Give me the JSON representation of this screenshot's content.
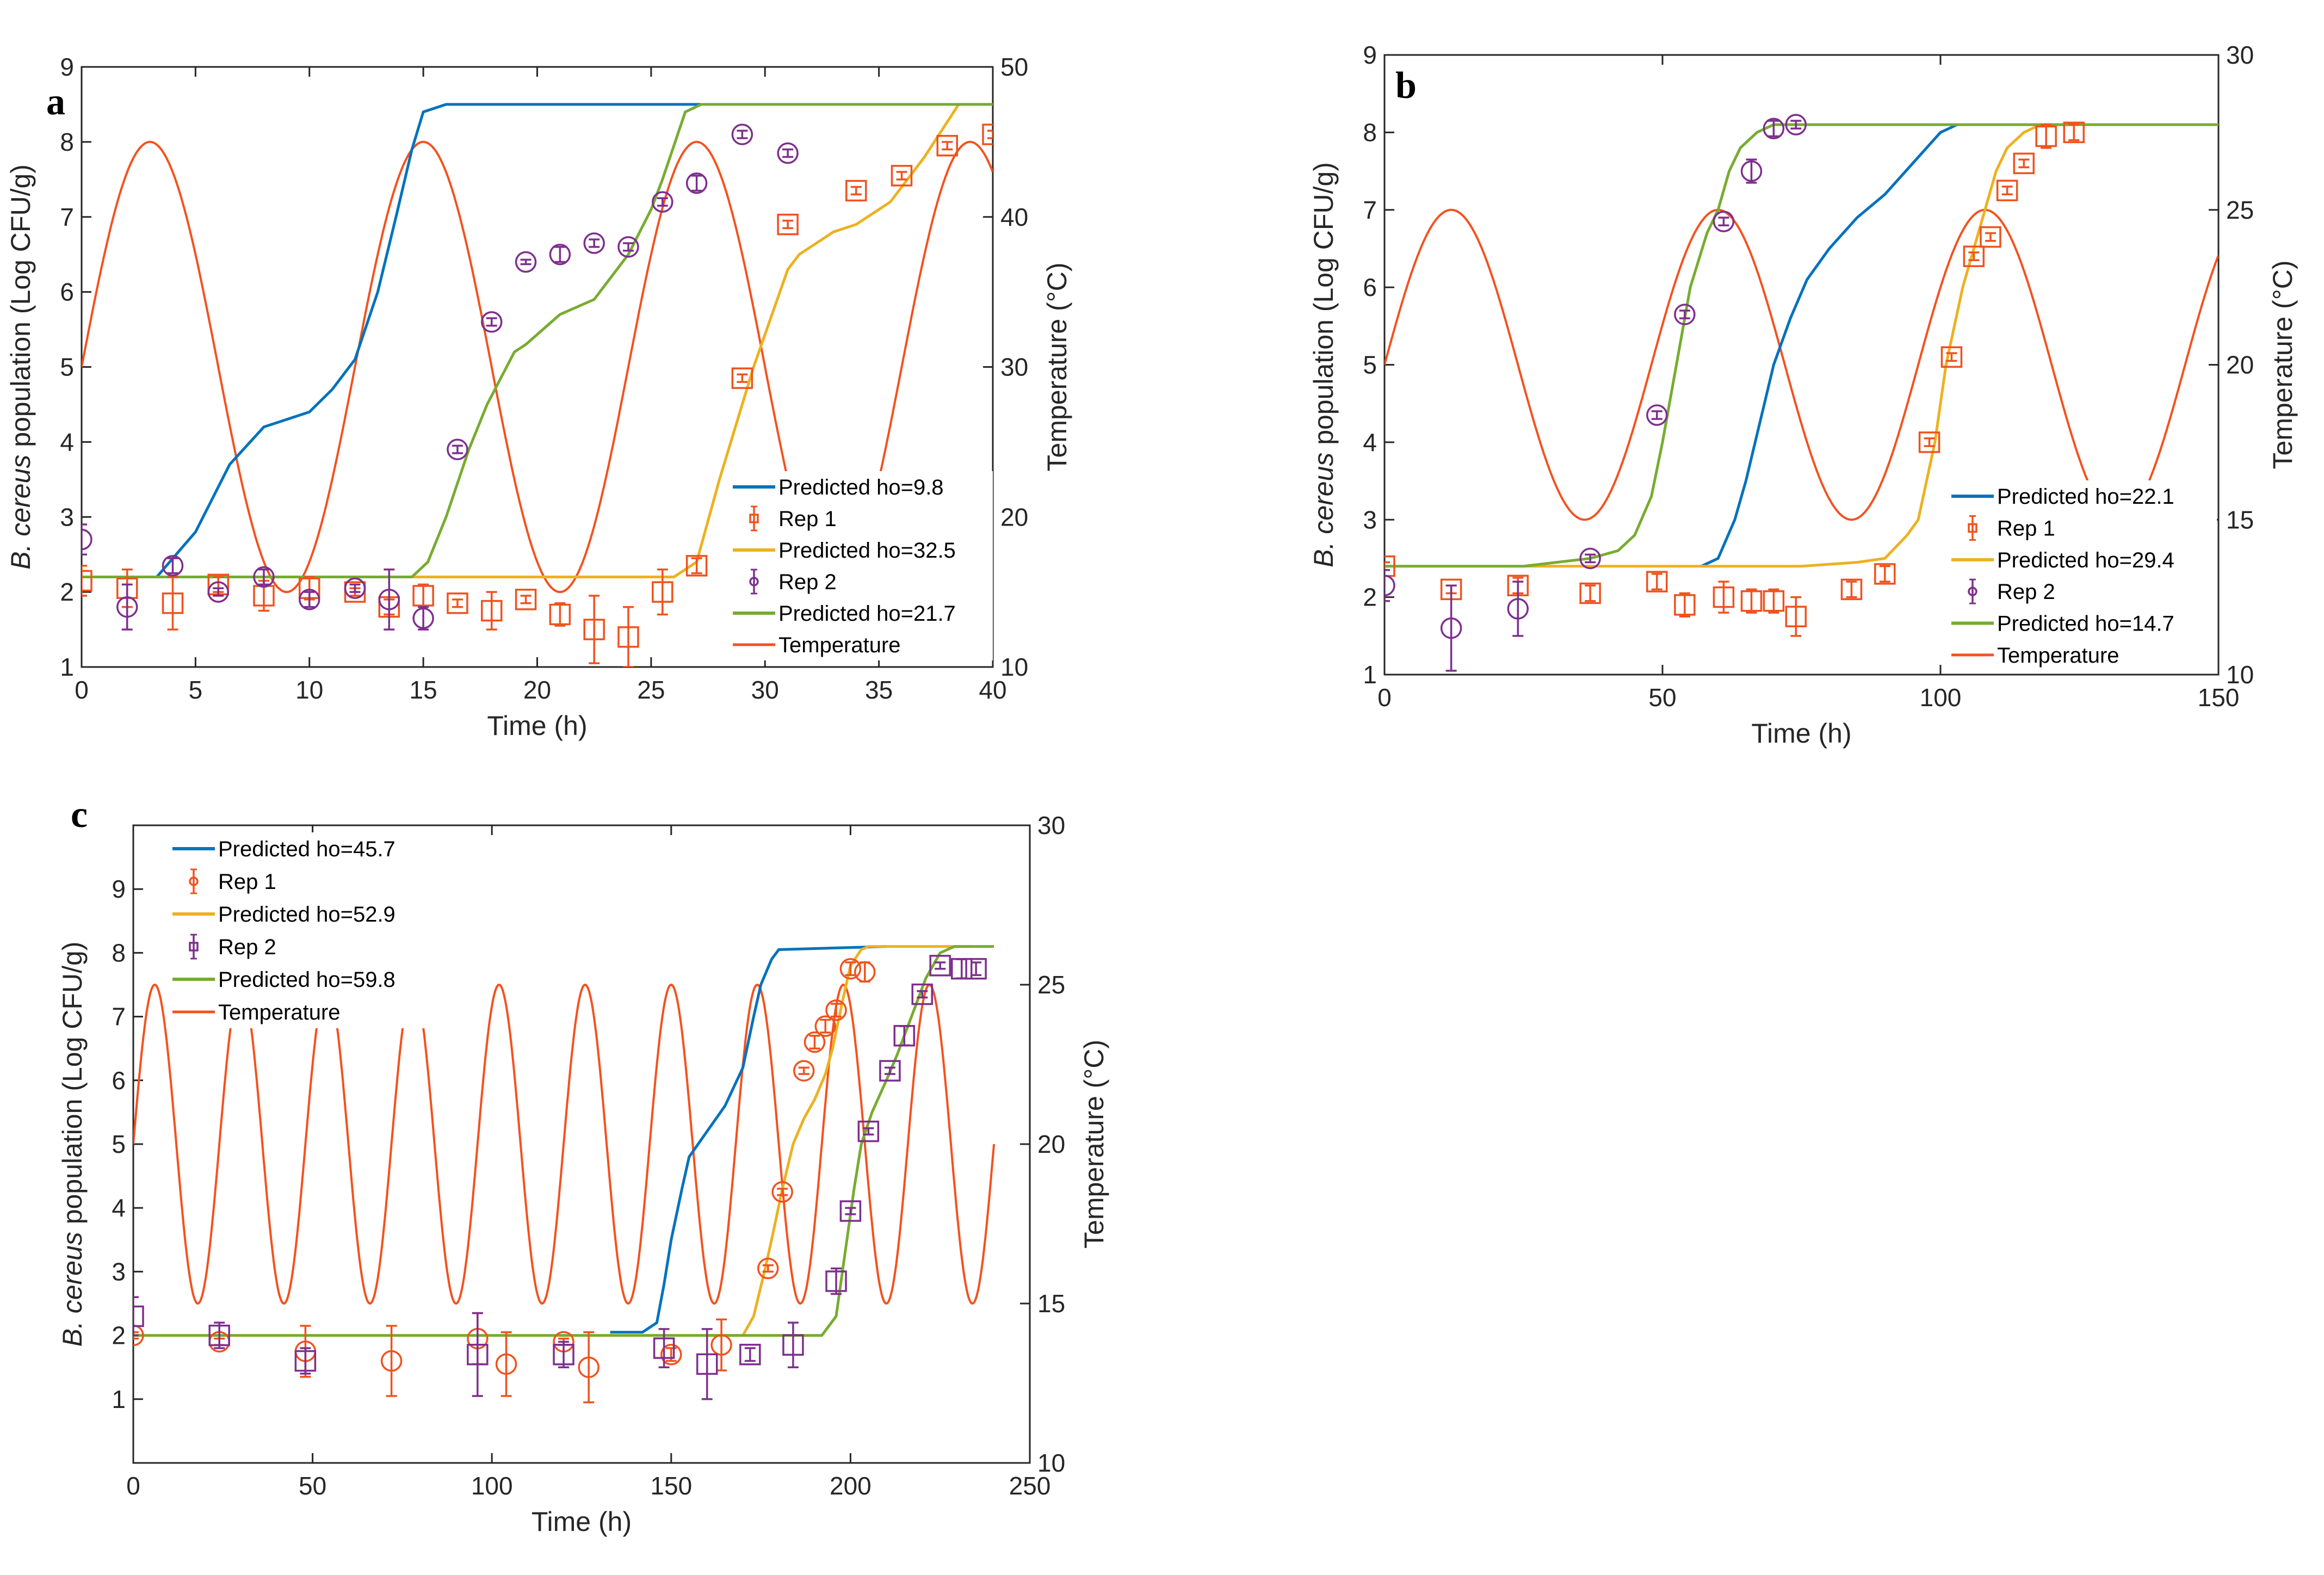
{
  "colors": {
    "blue": "#0072BD",
    "yellow": "#EDB120",
    "green": "#77AC30",
    "temp": "#F4511E",
    "rep1": "#F0521E",
    "rep2": "#7E2F8E",
    "axis": "#262626"
  },
  "chart_data": [
    {
      "type": "line",
      "panel_label": "a",
      "xlabel": "Time (h)",
      "ylabel_italic": "B. cereus",
      "ylabel_rest": " population (Log CFU/g)",
      "y2label": "Temperature (°C)",
      "xlim": [
        0,
        40
      ],
      "ylim": [
        1,
        9
      ],
      "y2lim": [
        10,
        50
      ],
      "xticks": [
        0,
        5,
        10,
        15,
        20,
        25,
        30,
        35,
        40
      ],
      "yticks": [
        1,
        2,
        3,
        4,
        5,
        6,
        7,
        8,
        9
      ],
      "y2ticks": [
        10,
        20,
        30,
        40,
        50
      ],
      "legend_placement": "bottom-right",
      "temperature": {
        "label": "Temperature",
        "mean": 30,
        "amplitude": 15,
        "period_h": 12,
        "t_range": [
          0,
          40
        ]
      },
      "predicted": [
        {
          "label": "Predicted ho=9.8",
          "color": "blue",
          "x": [
            3.3,
            5,
            6.5,
            8,
            10,
            11,
            12,
            13,
            13.8,
            14.5,
            15,
            16,
            27.2
          ],
          "y": [
            2.2,
            2.8,
            3.7,
            4.2,
            4.4,
            4.7,
            5.1,
            6.0,
            7.0,
            7.9,
            8.4,
            8.5,
            8.5
          ]
        },
        {
          "label": "Predicted ho=32.5",
          "color": "yellow",
          "x": [
            14.5,
            26,
            27,
            28,
            29.5,
            31,
            31.5,
            33,
            34,
            35.5,
            37,
            38.5,
            40
          ],
          "y": [
            2.2,
            2.2,
            2.4,
            3.5,
            5.0,
            6.3,
            6.5,
            6.8,
            6.9,
            7.2,
            7.8,
            8.5,
            8.5
          ]
        },
        {
          "label": "Predicted ho=21.7",
          "color": "green",
          "x": [
            0,
            14.5,
            15.2,
            16,
            17,
            17.8,
            19,
            19.5,
            21,
            22.5,
            24,
            25,
            25.5,
            26.5,
            27.2,
            40
          ],
          "y": [
            2.2,
            2.2,
            2.4,
            3.0,
            3.9,
            4.5,
            5.2,
            5.3,
            5.7,
            5.9,
            6.5,
            7.1,
            7.5,
            8.4,
            8.5,
            8.5
          ]
        }
      ],
      "reps": [
        {
          "label": "Rep 1",
          "marker": "square",
          "color": "rep1",
          "legend_marker": "square",
          "x": [
            0,
            2,
            4,
            6,
            8,
            10,
            12,
            13.5,
            15,
            16.5,
            18,
            19.5,
            21,
            22.5,
            24,
            25.5,
            27,
            29,
            31,
            34,
            36,
            38,
            40
          ],
          "y": [
            2.15,
            2.05,
            1.85,
            2.1,
            1.95,
            2.05,
            2.0,
            1.8,
            1.95,
            1.85,
            1.75,
            1.9,
            1.7,
            1.5,
            1.4,
            2.0,
            2.35,
            4.85,
            6.9,
            7.35,
            7.55,
            7.95,
            8.1
          ],
          "err": [
            0.2,
            0.25,
            0.35,
            0.1,
            0.2,
            0.15,
            0.05,
            0.1,
            0.15,
            0.05,
            0.25,
            0.05,
            0.15,
            0.45,
            0.4,
            0.3,
            0.1,
            0.05,
            0.05,
            0.05,
            0.05,
            0.05,
            0.05
          ]
        },
        {
          "label": "Rep 2",
          "marker": "circle",
          "color": "rep2",
          "legend_marker": "circle",
          "x": [
            0,
            2,
            4,
            6,
            8,
            10,
            12,
            13.5,
            15,
            16.5,
            18,
            19.5,
            21,
            22.5,
            24,
            25.5,
            27,
            29,
            31
          ],
          "y": [
            2.7,
            1.8,
            2.35,
            2.0,
            2.2,
            1.9,
            2.05,
            1.9,
            1.65,
            3.9,
            5.6,
            6.4,
            6.5,
            6.65,
            6.6,
            7.2,
            7.45,
            8.1,
            7.85
          ],
          "err": [
            0.2,
            0.3,
            0.1,
            0.05,
            0.1,
            0.1,
            0.05,
            0.4,
            0.15,
            0.05,
            0.05,
            0.03,
            0.1,
            0.05,
            0.05,
            0.05,
            0.1,
            0.05,
            0.05
          ]
        }
      ],
      "legend_order": [
        "p0",
        "r0",
        "p1",
        "r1",
        "p2",
        "temp"
      ]
    },
    {
      "type": "line",
      "panel_label": "b",
      "xlabel": "Time (h)",
      "ylabel_italic": "B. cereus",
      "ylabel_rest": " population (Log CFU/g)",
      "y2label": "Temperature (°C)",
      "xlim": [
        0,
        150
      ],
      "ylim": [
        1,
        9
      ],
      "y2lim": [
        10,
        30
      ],
      "xticks": [
        0,
        50,
        100,
        150
      ],
      "yticks": [
        1,
        2,
        3,
        4,
        5,
        6,
        7,
        8,
        9
      ],
      "y2ticks": [
        10,
        15,
        20,
        25,
        30
      ],
      "legend_placement": "bottom-right",
      "temperature": {
        "label": "Temperature",
        "mean": 20,
        "amplitude": 5,
        "period_h": 48,
        "t_range": [
          0,
          150
        ]
      },
      "predicted": [
        {
          "label": "Predicted ho=22.1",
          "color": "blue",
          "x": [
            57,
            60,
            63,
            65,
            68,
            70,
            73,
            76,
            80,
            85,
            90,
            95,
            100,
            103
          ],
          "y": [
            2.4,
            2.5,
            3.0,
            3.5,
            4.4,
            5.0,
            5.6,
            6.1,
            6.5,
            6.9,
            7.2,
            7.6,
            8.0,
            8.1
          ]
        },
        {
          "label": "Predicted ho=29.4",
          "color": "yellow",
          "x": [
            25,
            75,
            85,
            90,
            94,
            96,
            99,
            101,
            104,
            108,
            110,
            112,
            115,
            118,
            124
          ],
          "y": [
            2.4,
            2.4,
            2.45,
            2.5,
            2.8,
            3.0,
            4.0,
            5.0,
            6.0,
            7.0,
            7.5,
            7.8,
            8.0,
            8.1,
            8.1
          ]
        },
        {
          "label": "Predicted ho=14.7",
          "color": "green",
          "x": [
            0,
            25,
            37,
            42,
            45,
            48,
            50,
            53,
            55,
            58,
            60,
            62,
            64,
            67,
            70,
            150
          ],
          "y": [
            2.4,
            2.4,
            2.5,
            2.6,
            2.8,
            3.3,
            4.0,
            5.2,
            6.0,
            6.7,
            7.0,
            7.5,
            7.8,
            8.0,
            8.1,
            8.1
          ]
        }
      ],
      "reps": [
        {
          "label": "Rep 1",
          "marker": "square",
          "color": "rep1",
          "legend_marker": "square",
          "x": [
            0,
            12,
            24,
            37,
            49,
            54,
            61,
            66,
            70,
            74,
            84,
            90,
            98,
            102,
            106,
            109,
            112,
            115,
            119,
            124
          ],
          "y": [
            2.4,
            2.1,
            2.15,
            2.05,
            2.2,
            1.9,
            2.0,
            1.95,
            1.95,
            1.75,
            2.1,
            2.3,
            4.0,
            5.1,
            6.4,
            6.65,
            7.25,
            7.6,
            7.95,
            8.0
          ],
          "err": [
            0.05,
            0.05,
            0.1,
            0.1,
            0.1,
            0.15,
            0.2,
            0.15,
            0.15,
            0.25,
            0.1,
            0.1,
            0.05,
            0.05,
            0.05,
            0.05,
            0.05,
            0.05,
            0.15,
            0.1
          ]
        },
        {
          "label": "Rep 2",
          "marker": "circle",
          "color": "rep2",
          "legend_marker": "circle",
          "x": [
            0,
            12,
            24,
            37,
            49,
            54,
            61,
            66,
            70,
            74
          ],
          "y": [
            2.15,
            1.6,
            1.85,
            2.5,
            4.35,
            5.65,
            6.85,
            7.5,
            8.05,
            8.1
          ],
          "err": [
            0.2,
            0.55,
            0.35,
            0.05,
            0.05,
            0.05,
            0.05,
            0.15,
            0.1,
            0.05
          ]
        }
      ],
      "legend_order": [
        "p0",
        "r0",
        "p1",
        "r1",
        "p2",
        "temp"
      ]
    },
    {
      "type": "line",
      "panel_label": "c",
      "xlabel": "Time (h)",
      "ylabel_italic": "B. cereus",
      "ylabel_rest": " population (Log CFU/g)",
      "y2label": "Temperature (°C)",
      "xlim": [
        0,
        250
      ],
      "ylim": [
        0,
        10
      ],
      "y2lim": [
        10,
        30
      ],
      "xticks": [
        0,
        50,
        100,
        150,
        200,
        250
      ],
      "yticks": [
        1,
        2,
        3,
        4,
        5,
        6,
        7,
        8,
        9
      ],
      "y2ticks": [
        10,
        15,
        20,
        25,
        30
      ],
      "legend_placement": "top-left",
      "temperature": {
        "label": "Temperature",
        "mean": 20,
        "amplitude": 5,
        "period_h": 24,
        "t_range": [
          0,
          240
        ]
      },
      "predicted": [
        {
          "label": "Predicted ho=45.7",
          "color": "blue",
          "x": [
            133,
            142,
            146,
            148,
            150,
            153,
            155,
            160,
            165,
            170,
            173,
            175,
            178,
            180,
            210
          ],
          "y": [
            2.05,
            2.05,
            2.2,
            2.8,
            3.5,
            4.3,
            4.8,
            5.2,
            5.6,
            6.2,
            7.0,
            7.5,
            7.9,
            8.05,
            8.1
          ]
        },
        {
          "label": "Predicted ho=52.9",
          "color": "yellow",
          "x": [
            160,
            170,
            173,
            176,
            178,
            181,
            184,
            187,
            190,
            193,
            195,
            198,
            200,
            203,
            205,
            234
          ],
          "y": [
            2.0,
            2.0,
            2.3,
            3.0,
            3.5,
            4.3,
            5.0,
            5.4,
            5.7,
            6.1,
            6.5,
            7.3,
            7.8,
            8.05,
            8.1,
            8.1
          ]
        },
        {
          "label": "Predicted ho=59.8",
          "color": "green",
          "x": [
            0,
            192,
            196,
            199,
            201,
            203,
            206,
            210,
            213,
            217,
            221,
            225,
            229,
            240
          ],
          "y": [
            2.0,
            2.0,
            2.3,
            3.5,
            4.3,
            5.0,
            5.5,
            6.0,
            6.4,
            7.0,
            7.6,
            8.0,
            8.1,
            8.1
          ]
        }
      ],
      "reps": [
        {
          "label": "Rep 1",
          "marker": "circle",
          "color": "rep1",
          "legend_marker": "circle",
          "x": [
            0,
            24,
            48,
            72,
            96,
            104,
            120,
            127,
            150,
            164,
            177,
            181,
            187,
            190,
            193,
            196,
            200,
            204
          ],
          "y": [
            2.0,
            1.9,
            1.75,
            1.6,
            1.95,
            1.55,
            1.9,
            1.5,
            1.7,
            1.85,
            3.05,
            4.25,
            6.15,
            6.6,
            6.85,
            7.1,
            7.75,
            7.7
          ],
          "err": [
            0.05,
            0.05,
            0.4,
            0.55,
            0.4,
            0.5,
            0.05,
            0.55,
            0.1,
            0.4,
            0.05,
            0.05,
            0.05,
            0.1,
            0.1,
            0.1,
            0.1,
            0.15
          ]
        },
        {
          "label": "Rep 2",
          "marker": "square",
          "color": "rep2",
          "legend_marker": "square",
          "x": [
            0,
            24,
            48,
            96,
            120,
            148,
            160,
            172,
            184,
            196,
            200,
            205,
            211,
            215,
            220,
            225,
            231,
            235
          ],
          "y": [
            2.3,
            2.0,
            1.6,
            1.7,
            1.7,
            1.8,
            1.55,
            1.7,
            1.85,
            2.85,
            3.95,
            5.2,
            6.15,
            6.7,
            7.35,
            7.8,
            7.75,
            7.75
          ],
          "err": [
            0.3,
            0.2,
            0.2,
            0.65,
            0.2,
            0.3,
            0.55,
            0.1,
            0.35,
            0.2,
            0.05,
            0.05,
            0.05,
            0.15,
            0.05,
            0.05,
            0.15,
            0.1
          ]
        }
      ],
      "legend_order": [
        "p0",
        "r0",
        "p1",
        "r1",
        "p2",
        "temp"
      ]
    }
  ]
}
